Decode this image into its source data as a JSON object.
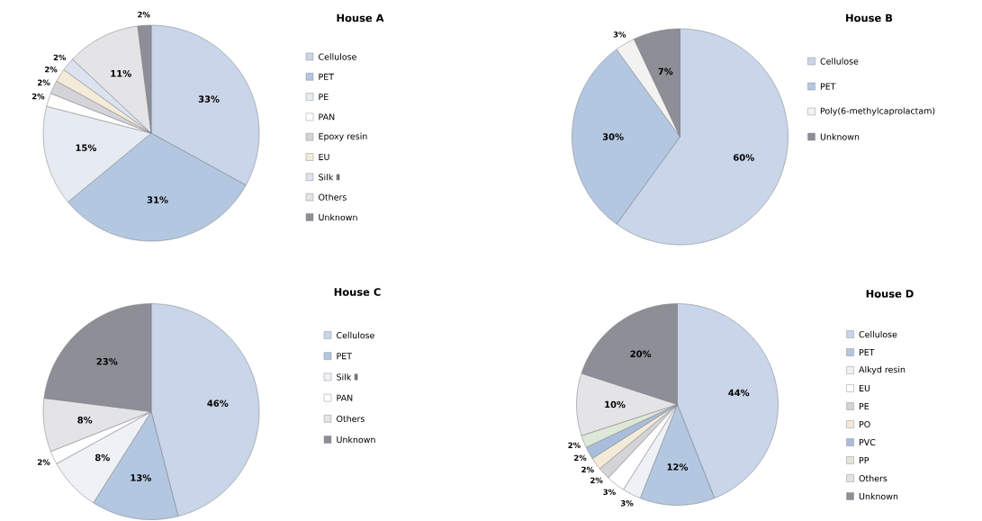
{
  "chart_data": [
    {
      "type": "pie",
      "title": "House A",
      "legend": "right",
      "categories": [
        "Cellulose",
        "PET",
        "PE",
        "PAN",
        "Epoxy resin",
        "EU",
        "Silk Ⅱ",
        "Others",
        "Unknown"
      ],
      "values": [
        33,
        31,
        15,
        2,
        2,
        2,
        2,
        11,
        2
      ],
      "value_labels": [
        "33%",
        "31%",
        "15%",
        "2%",
        "2%",
        "2%",
        "2%",
        "11%",
        "2%"
      ],
      "colors": [
        "#c9d5e8",
        "#b3c7e0",
        "#e6ebf2",
        "#ffffff",
        "#d4d4d8",
        "#f3ead8",
        "#dbe3ee",
        "#e4e4e6",
        "#8e8e96"
      ]
    },
    {
      "type": "pie",
      "title": "House B",
      "legend": "right",
      "categories": [
        "Cellulose",
        "PET",
        "Poly(6-methylcaprolactam)",
        "Unknown"
      ],
      "values": [
        60,
        30,
        3,
        7
      ],
      "value_labels": [
        "60%",
        "30%",
        "3%",
        "7%"
      ],
      "colors": [
        "#c9d5e8",
        "#b3c7e0",
        "#f2f2f2",
        "#8e8e96"
      ]
    },
    {
      "type": "pie",
      "title": "House C",
      "legend": "right",
      "categories": [
        "Cellulose",
        "PET",
        "Silk Ⅱ",
        "PAN",
        "Others",
        "Unknown"
      ],
      "values": [
        46,
        13,
        8,
        2,
        8,
        23
      ],
      "value_labels": [
        "46%",
        "13%",
        "8%",
        "2%",
        "8%",
        "23%"
      ],
      "colors": [
        "#c9d5e8",
        "#b3c7e0",
        "#eef1f5",
        "#ffffff",
        "#e4e4e6",
        "#8e8e96"
      ]
    },
    {
      "type": "pie",
      "title": "House D",
      "legend": "right",
      "categories": [
        "Cellulose",
        "PET",
        "Alkyd resin",
        "EU",
        "PE",
        "PO",
        "PVC",
        "PP",
        "Others",
        "Unknown"
      ],
      "values": [
        44,
        12,
        3,
        3,
        2,
        2,
        2,
        2,
        10,
        20
      ],
      "value_labels": [
        "44%",
        "12%",
        "3%",
        "3%",
        "2%",
        "2%",
        "2%",
        "2%",
        "10%",
        "20%"
      ],
      "colors": [
        "#c9d5e8",
        "#b3c7e0",
        "#eef1f5",
        "#ffffff",
        "#d4d4d8",
        "#f3ead8",
        "#a9bedb",
        "#dfe8d8",
        "#e4e4e6",
        "#8e8e96"
      ]
    }
  ]
}
